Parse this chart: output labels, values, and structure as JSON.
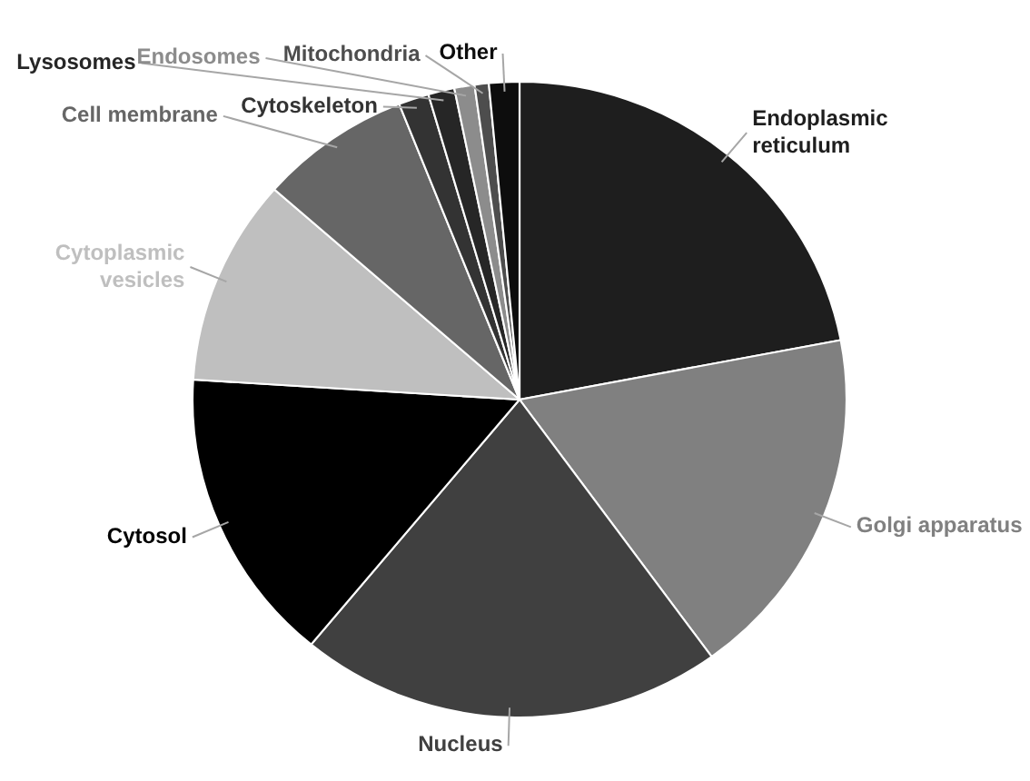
{
  "chart_data": {
    "type": "pie",
    "categories": [
      "Endoplasmic reticulum",
      "Golgi apparatus",
      "Nucleus",
      "Cytosol",
      "Cytoplasmic vesicles",
      "Cell membrane",
      "Cytoskeleton",
      "Lysosomes",
      "Endosomes",
      "Mitochondria",
      "Other"
    ],
    "values": [
      22,
      18,
      21,
      15,
      10.5,
      7.5,
      1.5,
      1.3,
      1,
      0.7,
      1.5
    ],
    "colors": [
      "#1e1e1e",
      "#808080",
      "#404040",
      "#000000",
      "#bfbfbf",
      "#666666",
      "#333333",
      "#262626",
      "#8c8c8c",
      "#4d4d4d",
      "#0d0d0d"
    ]
  }
}
